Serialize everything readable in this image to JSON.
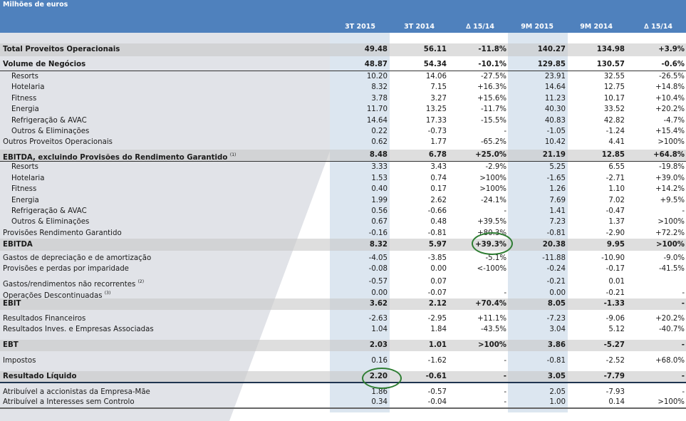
{
  "header": {
    "unit": "Milhões de euros",
    "columns": [
      "3T 2015",
      "3T 2014",
      "∆ 15/14",
      "9M 2015",
      "9M 2014",
      "∆ 15/14"
    ]
  },
  "colors": {
    "header_bg": "#4f81bd",
    "band": "#dce6f0",
    "gray_bg": "#e1e3e8",
    "highlight_ring": "#2e7d32"
  },
  "rows": [
    {
      "label": "Total Proveitos Operacionais",
      "values": [
        "49.48",
        "56.11",
        "-11.8%",
        "140.27",
        "134.98",
        "+3.9%"
      ]
    },
    {
      "label": "Volume de Negócios",
      "values": [
        "48.87",
        "54.34",
        "-10.1%",
        "129.85",
        "130.57",
        "-0.6%"
      ]
    },
    {
      "label": "Resorts",
      "values": [
        "10.20",
        "14.06",
        "-27.5%",
        "23.91",
        "32.55",
        "-26.5%"
      ]
    },
    {
      "label": "Hotelaria",
      "values": [
        "8.32",
        "7.15",
        "+16.3%",
        "14.64",
        "12.75",
        "+14.8%"
      ]
    },
    {
      "label": "Fitness",
      "values": [
        "3.78",
        "3.27",
        "+15.6%",
        "11.23",
        "10.17",
        "+10.4%"
      ]
    },
    {
      "label": "Energia",
      "values": [
        "11.70",
        "13.25",
        "-11.7%",
        "40.30",
        "33.52",
        "+20.2%"
      ]
    },
    {
      "label": "Refrigeração & AVAC",
      "values": [
        "14.64",
        "17.33",
        "-15.5%",
        "40.83",
        "42.82",
        "-4.7%"
      ]
    },
    {
      "label": "Outros & Eliminações",
      "values": [
        "0.22",
        "-0.73",
        "-",
        "-1.05",
        "-1.24",
        "+15.4%"
      ]
    },
    {
      "label": "Outros Proveitos Operacionais",
      "values": [
        "0.62",
        "1.77",
        "-65.2%",
        "10.42",
        "4.41",
        ">100%"
      ]
    },
    {
      "label": "EBITDA, excluindo Provisões do Rendimento Garantido",
      "note": "(1)",
      "values": [
        "8.48",
        "6.78",
        "+25.0%",
        "21.19",
        "12.85",
        "+64.8%"
      ]
    },
    {
      "label": "Resorts",
      "values": [
        "3.33",
        "3.43",
        "-2.9%",
        "5.25",
        "6.55",
        "-19.8%"
      ]
    },
    {
      "label": "Hotelaria",
      "values": [
        "1.53",
        "0.74",
        ">100%",
        "-1.65",
        "-2.71",
        "+39.0%"
      ]
    },
    {
      "label": "Fitness",
      "values": [
        "0.40",
        "0.17",
        ">100%",
        "1.26",
        "1.10",
        "+14.2%"
      ]
    },
    {
      "label": "Energia",
      "values": [
        "1.99",
        "2.62",
        "-24.1%",
        "7.69",
        "7.02",
        "+9.5%"
      ]
    },
    {
      "label": "Refrigeração & AVAC",
      "values": [
        "0.56",
        "-0.66",
        "-",
        "1.41",
        "-0.47",
        "-"
      ]
    },
    {
      "label": "Outros & Eliminações",
      "values": [
        "0.67",
        "0.48",
        "+39.5%",
        "7.23",
        "1.37",
        ">100%"
      ]
    },
    {
      "label": "Provisões Rendimento Garantido",
      "values": [
        "-0.16",
        "-0.81",
        "+80.3%",
        "-0.81",
        "-2.90",
        "+72.2%"
      ]
    },
    {
      "label": "EBITDA",
      "values": [
        "8.32",
        "5.97",
        "+39.3%",
        "20.38",
        "9.95",
        ">100%"
      ]
    },
    {
      "label": "Gastos de depreciação e de amortização",
      "values": [
        "-4.05",
        "-3.85",
        "-5.1%",
        "-11.88",
        "-10.90",
        "-9.0%"
      ]
    },
    {
      "label": "Provisões e perdas por imparidade",
      "values": [
        "-0.08",
        "0.00",
        "<-100%",
        "-0.24",
        "-0.17",
        "-41.5%"
      ]
    },
    {
      "label": "Gastos/rendimentos não recorrentes",
      "note": "(2)",
      "values": [
        "-0.57",
        "0.07",
        "",
        "-0.21",
        "0.01",
        ""
      ]
    },
    {
      "label": "Operações Descontinuadas",
      "note": "(3)",
      "values": [
        "0.00",
        "-0.07",
        "-",
        "0.00",
        "-0.21",
        "-"
      ]
    },
    {
      "label": "EBIT",
      "values": [
        "3.62",
        "2.12",
        "+70.4%",
        "8.05",
        "-1.33",
        "-"
      ]
    },
    {
      "label": "Resultados Financeiros",
      "values": [
        "-2.63",
        "-2.95",
        "+11.1%",
        "-7.23",
        "-9.06",
        "+20.2%"
      ]
    },
    {
      "label": "Resultados Inves. e Empresas Associadas",
      "values": [
        "1.04",
        "1.84",
        "-43.5%",
        "3.04",
        "5.12",
        "-40.7%"
      ]
    },
    {
      "label": "EBT",
      "values": [
        "2.03",
        "1.01",
        ">100%",
        "3.86",
        "-5.27",
        "-"
      ]
    },
    {
      "label": "Impostos",
      "values": [
        "0.16",
        "-1.62",
        "-",
        "-0.81",
        "-2.52",
        "+68.0%"
      ]
    },
    {
      "label": "Resultado Líquido",
      "values": [
        "2.20",
        "-0.61",
        "-",
        "3.05",
        "-7.79",
        "-"
      ]
    },
    {
      "label": "Atribuível a accionistas da Empresa-Mãe",
      "values": [
        "1.86",
        "-0.57",
        "-",
        "2.05",
        "-7.93",
        "-"
      ]
    },
    {
      "label": "Atribuível a Interesses sem Controlo",
      "values": [
        "0.34",
        "-0.04",
        "-",
        "1.00",
        "0.14",
        ">100%"
      ]
    }
  ]
}
